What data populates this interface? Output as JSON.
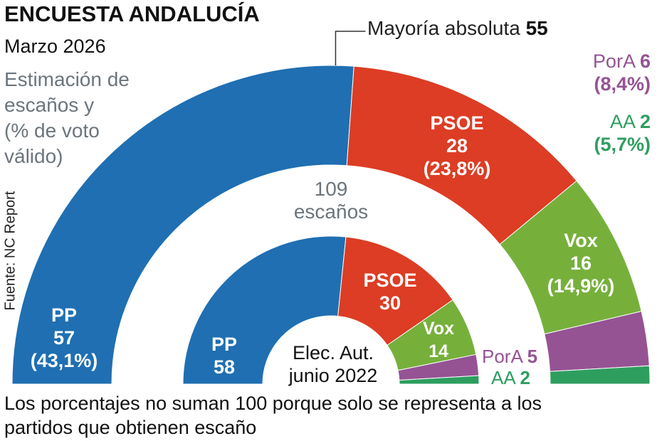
{
  "title": "ENCUESTA ANDALUCÍA",
  "subtitle": "Marzo 2026",
  "description": "Estimación de\nescaños y\n(% de voto\nválido)",
  "source": "Fuente: NC Report",
  "note": "Los porcentajes no suman 100 porque solo se representa a los\npartidos que obtienen escaño",
  "chart_data": {
    "type": "parliament",
    "total_seats": 109,
    "total_label": "109\nescaños",
    "majority": {
      "label": "Mayoría absoluta",
      "value": "55"
    },
    "colors": {
      "PP": "#1f6fb2",
      "PSOE": "#dc3d24",
      "Vox": "#76b03b",
      "PorA": "#955394",
      "AA": "#2e9e5f"
    },
    "series": [
      {
        "name": "Estimación Marzo 2026",
        "seats": [
          {
            "party": "PP",
            "value": 57,
            "pct": "(43,1%)"
          },
          {
            "party": "PSOE",
            "value": 28,
            "pct": "(23,8%)"
          },
          {
            "party": "Vox",
            "value": 16,
            "pct": "(14,9%)"
          },
          {
            "party": "PorA",
            "value": 6,
            "pct": "(8,4%)"
          },
          {
            "party": "AA",
            "value": 2,
            "pct": "(5,7%)"
          }
        ]
      },
      {
        "name": "Elec. Aut.\njunio 2022",
        "seats": [
          {
            "party": "PP",
            "value": 58
          },
          {
            "party": "PSOE",
            "value": 30
          },
          {
            "party": "Vox",
            "value": 14
          },
          {
            "party": "PorA",
            "value": 5
          },
          {
            "party": "AA",
            "value": 2
          }
        ]
      }
    ]
  }
}
